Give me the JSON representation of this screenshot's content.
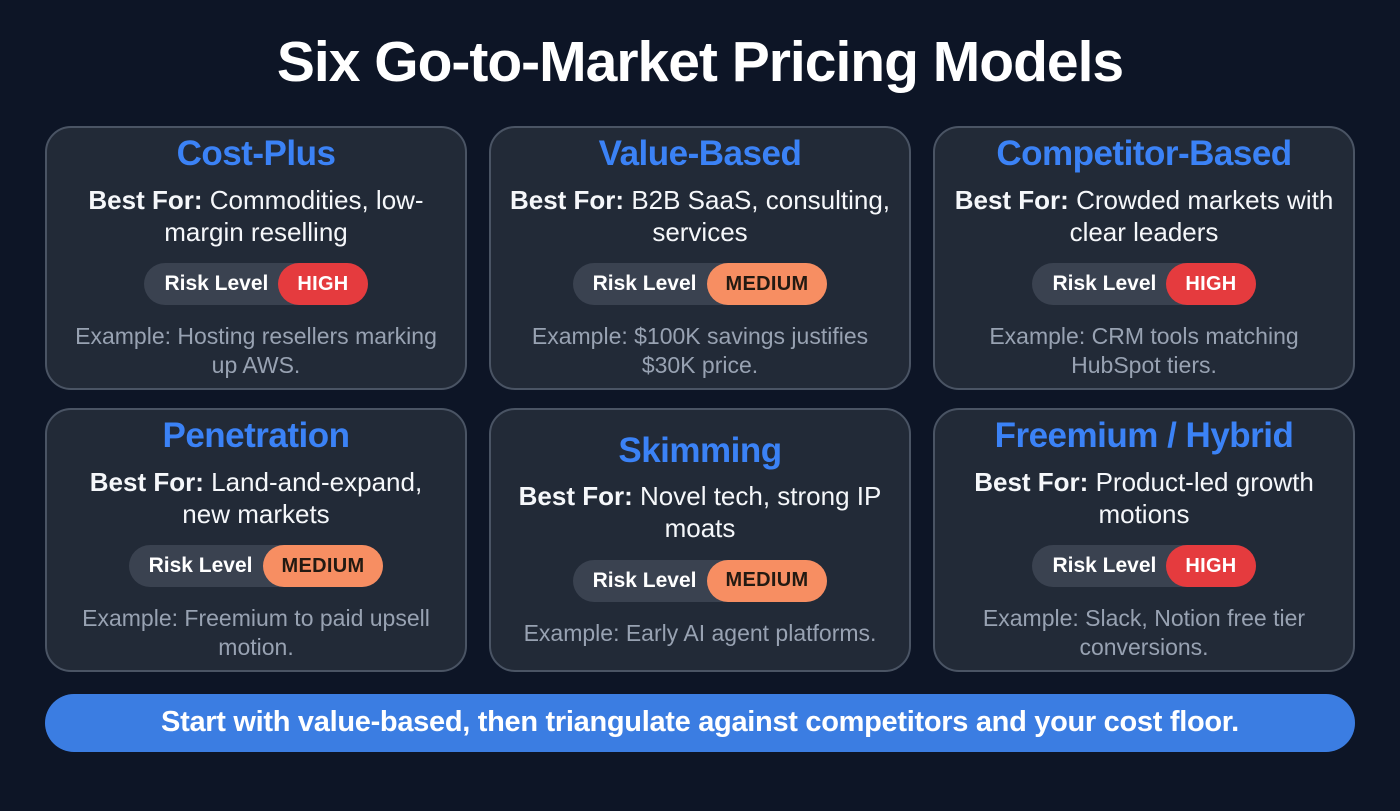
{
  "page": {
    "title": "Six Go-to-Market Pricing Models",
    "colors": {
      "background": "#0d1526",
      "card_background": "#222a37",
      "card_border": "#4a5464",
      "accent_blue": "#3b82f6",
      "banner_blue": "#3b7de2",
      "risk_pill_background": "#3a4250",
      "high_red": "#e53b3e",
      "medium_orange": "#f78e62",
      "example_gray": "#98a2b2"
    }
  },
  "cards": [
    {
      "title": "Cost-Plus",
      "best_for_label": "Best For:",
      "best_for_text": "Commodities, low-margin reselling",
      "risk_label": "Risk Level",
      "risk_value": "HIGH",
      "risk_color": "#e53b3e",
      "risk_text_color": "#ffffff",
      "example": "Example: Hosting resellers marking up AWS."
    },
    {
      "title": "Value-Based",
      "best_for_label": "Best For:",
      "best_for_text": "B2B SaaS, consulting, services",
      "risk_label": "Risk Level",
      "risk_value": "MEDIUM",
      "risk_color": "#f78e62",
      "risk_text_color": "#231a12",
      "example": "Example: $100K savings justifies $30K price."
    },
    {
      "title": "Competitor-Based",
      "best_for_label": "Best For:",
      "best_for_text": "Crowded markets with clear leaders",
      "risk_label": "Risk Level",
      "risk_value": "HIGH",
      "risk_color": "#e53b3e",
      "risk_text_color": "#ffffff",
      "example": "Example: CRM tools matching HubSpot tiers."
    },
    {
      "title": "Penetration",
      "best_for_label": "Best For:",
      "best_for_text": "Land-and-expand, new markets",
      "risk_label": "Risk Level",
      "risk_value": "MEDIUM",
      "risk_color": "#f78e62",
      "risk_text_color": "#231a12",
      "example": "Example: Freemium to paid upsell motion."
    },
    {
      "title": "Skimming",
      "best_for_label": "Best For:",
      "best_for_text": "Novel tech, strong IP moats",
      "risk_label": "Risk Level",
      "risk_value": "MEDIUM",
      "risk_color": "#f78e62",
      "risk_text_color": "#231a12",
      "example": "Example: Early AI agent platforms."
    },
    {
      "title": "Freemium / Hybrid",
      "best_for_label": "Best For:",
      "best_for_text": "Product-led growth motions",
      "risk_label": "Risk Level",
      "risk_value": "HIGH",
      "risk_color": "#e53b3e",
      "risk_text_color": "#ffffff",
      "example": "Example: Slack, Notion free tier conversions."
    }
  ],
  "banner": {
    "text": "Start with value-based, then triangulate against competitors and your cost floor."
  }
}
